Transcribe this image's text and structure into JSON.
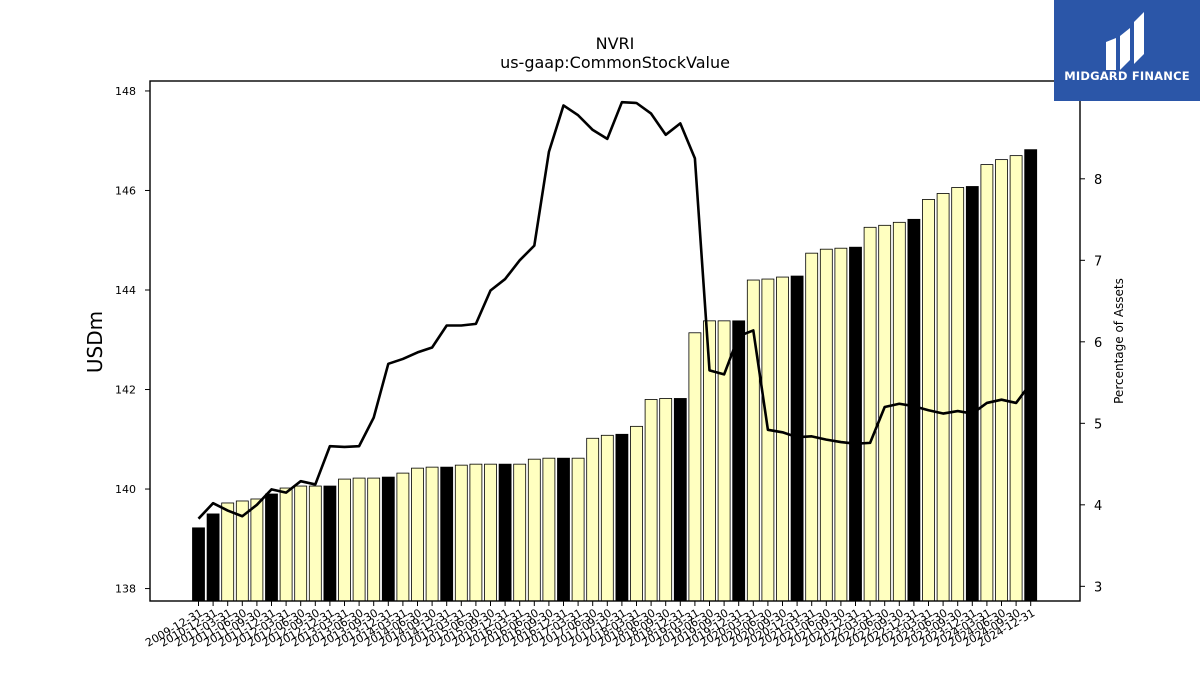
{
  "chart_data": {
    "type": "bar",
    "title": "NVRI",
    "subtitle": "us-gaap:CommonStockValue",
    "ylabel": "USDm",
    "y2label": "Percentage of Assets",
    "ylim": [
      137.75,
      148.2
    ],
    "y2lim": [
      2.82,
      9.2
    ],
    "yticks": [
      138,
      140,
      142,
      144,
      146,
      148
    ],
    "y2ticks": [
      3,
      4,
      5,
      6,
      7,
      8
    ],
    "categories": [
      "2009-12-31",
      "2010-12-31",
      "2011-03-31",
      "2011-06-30",
      "2011-09-30",
      "2011-12-31",
      "2012-03-31",
      "2012-06-30",
      "2012-09-30",
      "2012-12-31",
      "2013-03-31",
      "2013-06-30",
      "2013-09-30",
      "2013-12-31",
      "2014-03-31",
      "2014-06-30",
      "2014-09-30",
      "2014-12-31",
      "2015-03-31",
      "2015-06-30",
      "2015-09-30",
      "2015-12-31",
      "2016-03-31",
      "2016-06-30",
      "2016-09-30",
      "2016-12-31",
      "2017-03-31",
      "2017-06-30",
      "2017-09-30",
      "2017-12-31",
      "2018-03-31",
      "2018-06-30",
      "2018-09-30",
      "2018-12-31",
      "2019-03-31",
      "2019-06-30",
      "2019-09-30",
      "2019-12-31",
      "2020-03-31",
      "2020-06-30",
      "2020-09-30",
      "2020-12-31",
      "2021-03-31",
      "2021-06-30",
      "2021-09-30",
      "2021-12-31",
      "2022-03-31",
      "2022-06-30",
      "2022-09-30",
      "2022-12-31",
      "2023-03-31",
      "2023-06-30",
      "2023-09-30",
      "2023-12-31",
      "2024-03-31",
      "2024-06-30",
      "2024-09-30",
      "2024-12-31"
    ],
    "series": [
      {
        "kind": "bar",
        "axis": "left",
        "values": [
          139.22,
          139.5,
          139.72,
          139.76,
          139.8,
          139.9,
          140.02,
          140.06,
          140.06,
          140.06,
          140.2,
          140.22,
          140.22,
          140.24,
          140.32,
          140.42,
          140.44,
          140.44,
          140.48,
          140.5,
          140.5,
          140.5,
          140.5,
          140.6,
          140.62,
          140.62,
          140.62,
          141.02,
          141.08,
          141.1,
          141.26,
          141.8,
          141.82,
          141.82,
          143.14,
          143.38,
          143.38,
          143.38,
          144.2,
          144.22,
          144.26,
          144.28,
          144.74,
          144.82,
          144.84,
          144.86,
          145.26,
          145.3,
          145.36,
          145.42,
          145.82,
          145.94,
          146.06,
          146.08,
          146.52,
          146.62,
          146.7,
          146.82
        ]
      },
      {
        "kind": "line",
        "axis": "right",
        "values": [
          3.83,
          4.02,
          3.93,
          3.86,
          4.0,
          4.19,
          4.15,
          4.29,
          4.25,
          4.72,
          4.71,
          4.72,
          5.07,
          5.73,
          5.79,
          5.87,
          5.93,
          6.2,
          6.2,
          6.22,
          6.63,
          6.77,
          7.0,
          7.18,
          8.33,
          8.9,
          8.78,
          8.6,
          8.49,
          8.94,
          8.93,
          8.8,
          8.54,
          8.68,
          8.25,
          5.65,
          5.6,
          6.07,
          6.14,
          4.92,
          4.89,
          4.83,
          4.84,
          4.8,
          4.77,
          4.75,
          4.76,
          5.2,
          5.24,
          5.21,
          5.16,
          5.12,
          5.15,
          5.12,
          5.25,
          5.29,
          5.25,
          5.49
        ]
      }
    ],
    "bar_colors": {
      "normal": "#ffffc0",
      "year_end": "#000000",
      "edge": "#000000"
    },
    "line_color": "#000000"
  },
  "logo": {
    "text": "MIDGARD FINANCE",
    "bg": "#2b56a8"
  }
}
